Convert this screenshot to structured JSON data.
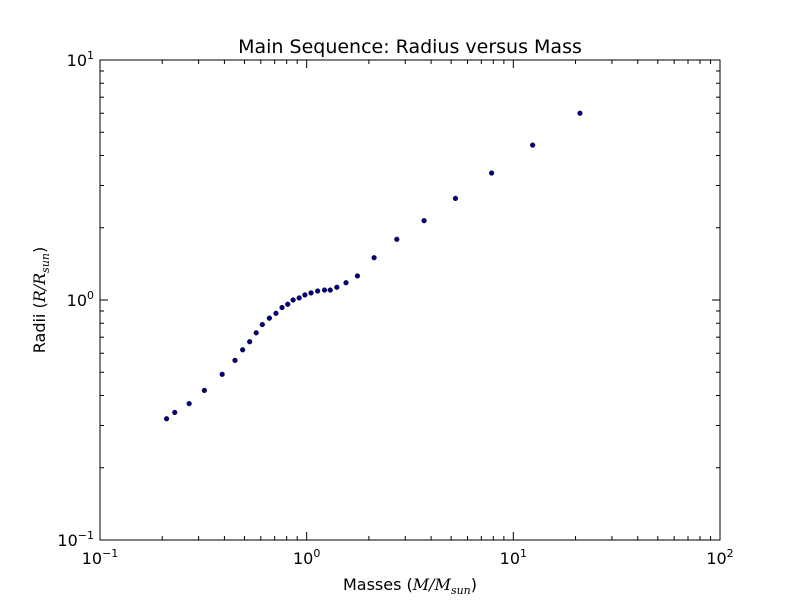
{
  "chart_data": {
    "type": "scatter",
    "title": "Main Sequence: Radius versus Mass",
    "xlabel": {
      "prefix": "Masses (",
      "math_main": "M/M",
      "math_sub": "sun",
      "suffix": ")"
    },
    "ylabel": {
      "prefix": "Radii (",
      "math_main": "R/R",
      "math_sub": "sun",
      "suffix": ")"
    },
    "xscale": "log",
    "yscale": "log",
    "xlim": [
      0.1,
      100
    ],
    "ylim": [
      0.1,
      10
    ],
    "x_ticks": [
      {
        "base": "10",
        "exp": "−1"
      },
      {
        "base": "10",
        "exp": "0"
      },
      {
        "base": "10",
        "exp": "1"
      },
      {
        "base": "10",
        "exp": "2"
      }
    ],
    "y_ticks": [
      {
        "base": "10",
        "exp": "−1"
      },
      {
        "base": "10",
        "exp": "0"
      },
      {
        "base": "10",
        "exp": "1"
      }
    ],
    "marker_color": "#000080",
    "grid": false,
    "legend": "none",
    "points": {
      "x": [
        0.21,
        0.23,
        0.27,
        0.32,
        0.39,
        0.45,
        0.49,
        0.53,
        0.57,
        0.61,
        0.66,
        0.71,
        0.76,
        0.81,
        0.86,
        0.92,
        0.98,
        1.05,
        1.13,
        1.22,
        1.3,
        1.4,
        1.55,
        1.76,
        2.12,
        2.73,
        3.7,
        5.25,
        7.85,
        12.4,
        21.0
      ],
      "y": [
        0.32,
        0.34,
        0.37,
        0.42,
        0.49,
        0.56,
        0.62,
        0.67,
        0.73,
        0.79,
        0.84,
        0.88,
        0.93,
        0.96,
        1.0,
        1.02,
        1.05,
        1.07,
        1.09,
        1.1,
        1.1,
        1.13,
        1.18,
        1.26,
        1.5,
        1.79,
        2.14,
        2.65,
        3.38,
        4.42,
        6.0
      ]
    }
  }
}
